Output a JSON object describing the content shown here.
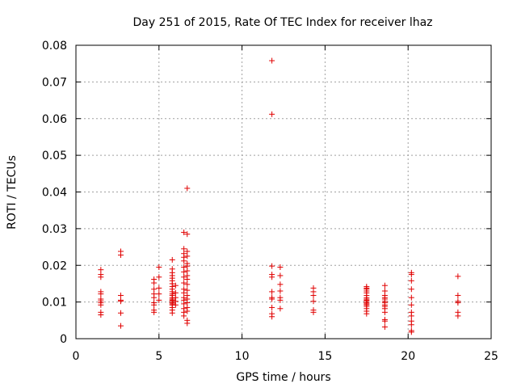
{
  "chart_data": {
    "type": "scatter",
    "title": "Day 251 of 2015, Rate Of TEC Index for receiver lhaz",
    "xlabel": "GPS time / hours",
    "ylabel": "ROTI / TECUs",
    "xlim": [
      0,
      25
    ],
    "ylim": [
      0,
      0.08
    ],
    "xticks": [
      "0",
      "5",
      "10",
      "15",
      "20",
      "25"
    ],
    "yticks": [
      "0",
      "0.01",
      "0.02",
      "0.03",
      "0.04",
      "0.05",
      "0.06",
      "0.07",
      "0.08"
    ],
    "grid": true,
    "marker": "+",
    "color": "#e00000",
    "points": [
      [
        1.5,
        0.0065
      ],
      [
        1.5,
        0.0072
      ],
      [
        1.5,
        0.0092
      ],
      [
        1.5,
        0.0098
      ],
      [
        1.5,
        0.0103
      ],
      [
        1.5,
        0.0108
      ],
      [
        1.5,
        0.0122
      ],
      [
        1.5,
        0.0128
      ],
      [
        1.5,
        0.0168
      ],
      [
        1.5,
        0.0175
      ],
      [
        1.5,
        0.0188
      ],
      [
        2.7,
        0.0035
      ],
      [
        2.7,
        0.007
      ],
      [
        2.7,
        0.0102
      ],
      [
        2.7,
        0.0105
      ],
      [
        2.7,
        0.0118
      ],
      [
        2.7,
        0.0228
      ],
      [
        2.7,
        0.0238
      ],
      [
        4.7,
        0.0072
      ],
      [
        4.7,
        0.0078
      ],
      [
        4.7,
        0.0092
      ],
      [
        4.7,
        0.0098
      ],
      [
        4.7,
        0.0112
      ],
      [
        4.7,
        0.0122
      ],
      [
        4.7,
        0.0135
      ],
      [
        4.7,
        0.0152
      ],
      [
        4.7,
        0.0162
      ],
      [
        5.0,
        0.0105
      ],
      [
        5.0,
        0.0122
      ],
      [
        5.0,
        0.0138
      ],
      [
        5.0,
        0.0168
      ],
      [
        5.0,
        0.0195
      ],
      [
        5.8,
        0.007
      ],
      [
        5.8,
        0.0078
      ],
      [
        5.8,
        0.0085
      ],
      [
        5.8,
        0.0092
      ],
      [
        5.8,
        0.0095
      ],
      [
        5.8,
        0.0098
      ],
      [
        5.8,
        0.0102
      ],
      [
        5.8,
        0.0105
      ],
      [
        5.8,
        0.0108
      ],
      [
        5.8,
        0.0112
      ],
      [
        5.8,
        0.0118
      ],
      [
        5.8,
        0.0122
      ],
      [
        5.8,
        0.0128
      ],
      [
        5.8,
        0.0135
      ],
      [
        5.8,
        0.0142
      ],
      [
        5.8,
        0.015
      ],
      [
        5.8,
        0.0158
      ],
      [
        5.8,
        0.0165
      ],
      [
        5.8,
        0.0172
      ],
      [
        5.8,
        0.018
      ],
      [
        5.8,
        0.019
      ],
      [
        5.8,
        0.0215
      ],
      [
        6.0,
        0.0092
      ],
      [
        6.0,
        0.0102
      ],
      [
        6.0,
        0.0112
      ],
      [
        6.0,
        0.0125
      ],
      [
        6.0,
        0.0145
      ],
      [
        6.5,
        0.0062
      ],
      [
        6.5,
        0.0072
      ],
      [
        6.5,
        0.0082
      ],
      [
        6.5,
        0.0095
      ],
      [
        6.5,
        0.0105
      ],
      [
        6.5,
        0.0112
      ],
      [
        6.5,
        0.0125
      ],
      [
        6.5,
        0.0135
      ],
      [
        6.5,
        0.0152
      ],
      [
        6.5,
        0.0168
      ],
      [
        6.5,
        0.0182
      ],
      [
        6.5,
        0.0195
      ],
      [
        6.5,
        0.0212
      ],
      [
        6.5,
        0.0222
      ],
      [
        6.5,
        0.0232
      ],
      [
        6.5,
        0.0245
      ],
      [
        6.5,
        0.029
      ],
      [
        6.7,
        0.0042
      ],
      [
        6.7,
        0.005
      ],
      [
        6.7,
        0.0075
      ],
      [
        6.7,
        0.0085
      ],
      [
        6.7,
        0.0098
      ],
      [
        6.7,
        0.0108
      ],
      [
        6.7,
        0.0118
      ],
      [
        6.7,
        0.0132
      ],
      [
        6.7,
        0.0148
      ],
      [
        6.7,
        0.0162
      ],
      [
        6.7,
        0.0172
      ],
      [
        6.7,
        0.0185
      ],
      [
        6.7,
        0.0198
      ],
      [
        6.7,
        0.0205
      ],
      [
        6.7,
        0.0225
      ],
      [
        6.7,
        0.0238
      ],
      [
        6.7,
        0.0285
      ],
      [
        6.7,
        0.041
      ],
      [
        11.8,
        0.006
      ],
      [
        11.8,
        0.0068
      ],
      [
        11.8,
        0.0085
      ],
      [
        11.8,
        0.0108
      ],
      [
        11.8,
        0.0112
      ],
      [
        11.8,
        0.0128
      ],
      [
        11.8,
        0.0168
      ],
      [
        11.8,
        0.0175
      ],
      [
        11.8,
        0.0198
      ],
      [
        11.8,
        0.0612
      ],
      [
        11.8,
        0.0758
      ],
      [
        12.3,
        0.0082
      ],
      [
        12.3,
        0.0105
      ],
      [
        12.3,
        0.0112
      ],
      [
        12.3,
        0.013
      ],
      [
        12.3,
        0.0148
      ],
      [
        12.3,
        0.0172
      ],
      [
        12.3,
        0.0195
      ],
      [
        14.3,
        0.0072
      ],
      [
        14.3,
        0.0078
      ],
      [
        14.3,
        0.0102
      ],
      [
        14.3,
        0.0118
      ],
      [
        14.3,
        0.0128
      ],
      [
        14.3,
        0.0138
      ],
      [
        17.5,
        0.0068
      ],
      [
        17.5,
        0.0075
      ],
      [
        17.5,
        0.0082
      ],
      [
        17.5,
        0.0088
      ],
      [
        17.5,
        0.0092
      ],
      [
        17.5,
        0.0095
      ],
      [
        17.5,
        0.0098
      ],
      [
        17.5,
        0.0102
      ],
      [
        17.5,
        0.0105
      ],
      [
        17.5,
        0.0108
      ],
      [
        17.5,
        0.0112
      ],
      [
        17.5,
        0.0118
      ],
      [
        17.5,
        0.0125
      ],
      [
        17.5,
        0.013
      ],
      [
        17.5,
        0.0135
      ],
      [
        17.5,
        0.0138
      ],
      [
        17.5,
        0.0142
      ],
      [
        18.6,
        0.0032
      ],
      [
        18.6,
        0.0048
      ],
      [
        18.6,
        0.0052
      ],
      [
        18.6,
        0.0072
      ],
      [
        18.6,
        0.0082
      ],
      [
        18.6,
        0.0088
      ],
      [
        18.6,
        0.0092
      ],
      [
        18.6,
        0.0098
      ],
      [
        18.6,
        0.0102
      ],
      [
        18.6,
        0.0108
      ],
      [
        18.6,
        0.0112
      ],
      [
        18.6,
        0.0118
      ],
      [
        18.6,
        0.013
      ],
      [
        18.6,
        0.0145
      ],
      [
        20.2,
        0.0018
      ],
      [
        20.2,
        0.0022
      ],
      [
        20.2,
        0.0038
      ],
      [
        20.2,
        0.0048
      ],
      [
        20.2,
        0.0062
      ],
      [
        20.2,
        0.0072
      ],
      [
        20.2,
        0.0092
      ],
      [
        20.2,
        0.0112
      ],
      [
        20.2,
        0.0135
      ],
      [
        20.2,
        0.0158
      ],
      [
        20.2,
        0.0175
      ],
      [
        20.2,
        0.018
      ],
      [
        23.0,
        0.0062
      ],
      [
        23.0,
        0.0072
      ],
      [
        23.0,
        0.0098
      ],
      [
        23.0,
        0.0102
      ],
      [
        23.0,
        0.0118
      ],
      [
        23.0,
        0.017
      ]
    ]
  }
}
